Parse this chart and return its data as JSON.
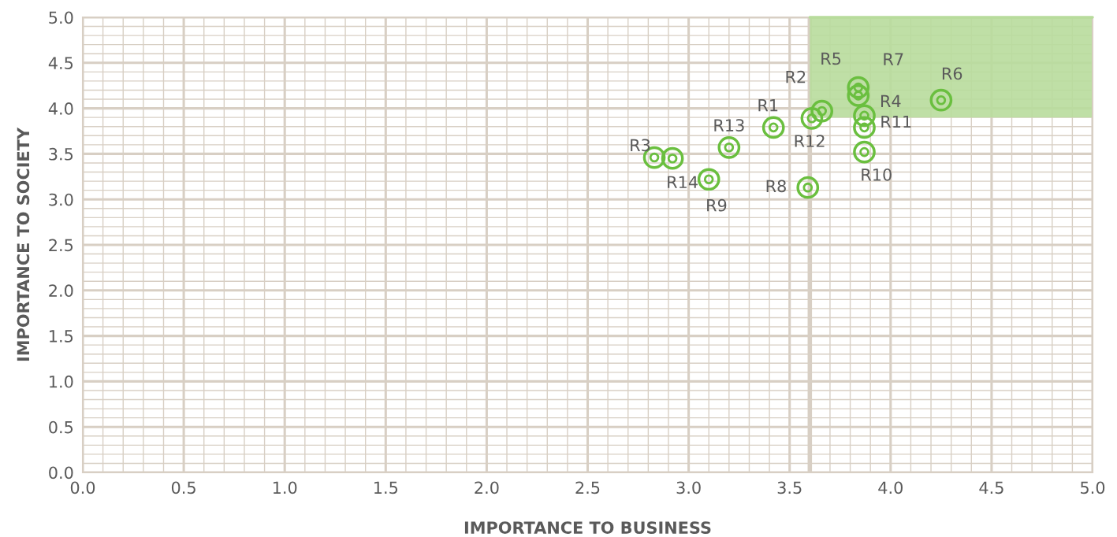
{
  "chart_data": {
    "type": "scatter",
    "xlabel": "IMPORTANCE TO BUSINESS",
    "ylabel": "IMPORTANCE TO SOCIETY",
    "xlim": [
      0,
      5
    ],
    "ylim": [
      0,
      5
    ],
    "xticks": [
      {
        "value": 0,
        "label": "0.0"
      },
      {
        "value": 0.5,
        "label": "0.5"
      },
      {
        "value": 1,
        "label": "1.0"
      },
      {
        "value": 1.5,
        "label": "1.5"
      },
      {
        "value": 2,
        "label": "2.0"
      },
      {
        "value": 2.5,
        "label": "2.5"
      },
      {
        "value": 3,
        "label": "3.0"
      },
      {
        "value": 3.5,
        "label": "3.5"
      },
      {
        "value": 4,
        "label": "4.0"
      },
      {
        "value": 4.5,
        "label": "4.5"
      },
      {
        "value": 5,
        "label": "5.0"
      }
    ],
    "yticks": [
      {
        "value": 0,
        "label": "0.0"
      },
      {
        "value": 0.5,
        "label": "0.5"
      },
      {
        "value": 1,
        "label": "1.0"
      },
      {
        "value": 1.5,
        "label": "1.5"
      },
      {
        "value": 2,
        "label": "2.0"
      },
      {
        "value": 2.5,
        "label": "2.5"
      },
      {
        "value": 3,
        "label": "3.0"
      },
      {
        "value": 3.5,
        "label": "3.5"
      },
      {
        "value": 4,
        "label": "4.0"
      },
      {
        "value": 4.5,
        "label": "4.5"
      },
      {
        "value": 5,
        "label": "5.0"
      }
    ],
    "grid": true,
    "marker": "circle",
    "series": [
      {
        "color": "#6abf3f",
        "x": [
          2.83,
          2.92,
          3.1,
          3.2,
          3.42,
          3.61,
          3.66,
          3.59,
          3.84,
          3.84,
          3.87,
          3.87,
          3.87,
          4.25
        ],
        "values": [
          3.46,
          3.45,
          3.22,
          3.57,
          3.79,
          3.89,
          3.97,
          3.13,
          4.23,
          4.14,
          3.92,
          3.79,
          3.52,
          4.09
        ]
      },
      {
        "type": "line",
        "marker": "none",
        "color": "#b8dc9c",
        "x": [
          3.6,
          5
        ],
        "values": [
          5,
          5
        ],
        "lower": [
          3.9,
          3.9
        ],
        "upper": [
          5,
          5
        ]
      }
    ],
    "annotations": [
      {
        "text": "R3",
        "x": 2.83,
        "y": 3.46
      },
      {
        "text": "R14",
        "x": 2.92,
        "y": 3.45
      },
      {
        "text": "R9",
        "x": 3.1,
        "y": 3.22
      },
      {
        "text": "R13",
        "x": 3.2,
        "y": 3.57
      },
      {
        "text": "R1",
        "x": 3.42,
        "y": 3.79
      },
      {
        "text": "R12",
        "x": 3.61,
        "y": 3.89
      },
      {
        "text": "R2",
        "x": 3.66,
        "y": 3.97
      },
      {
        "text": "R8",
        "x": 3.59,
        "y": 3.13
      },
      {
        "text": "R5",
        "x": 3.84,
        "y": 4.23
      },
      {
        "text": "R7",
        "x": 3.84,
        "y": 4.14
      },
      {
        "text": "R4",
        "x": 3.87,
        "y": 3.92
      },
      {
        "text": "R11",
        "x": 3.87,
        "y": 3.79
      },
      {
        "text": "R10",
        "x": 3.87,
        "y": 3.52
      },
      {
        "text": "R6",
        "x": 4.25,
        "y": 4.09
      }
    ],
    "ref_lines": [
      {
        "axis": "x",
        "value": 3.6,
        "color": "#d8cfc4"
      }
    ]
  }
}
